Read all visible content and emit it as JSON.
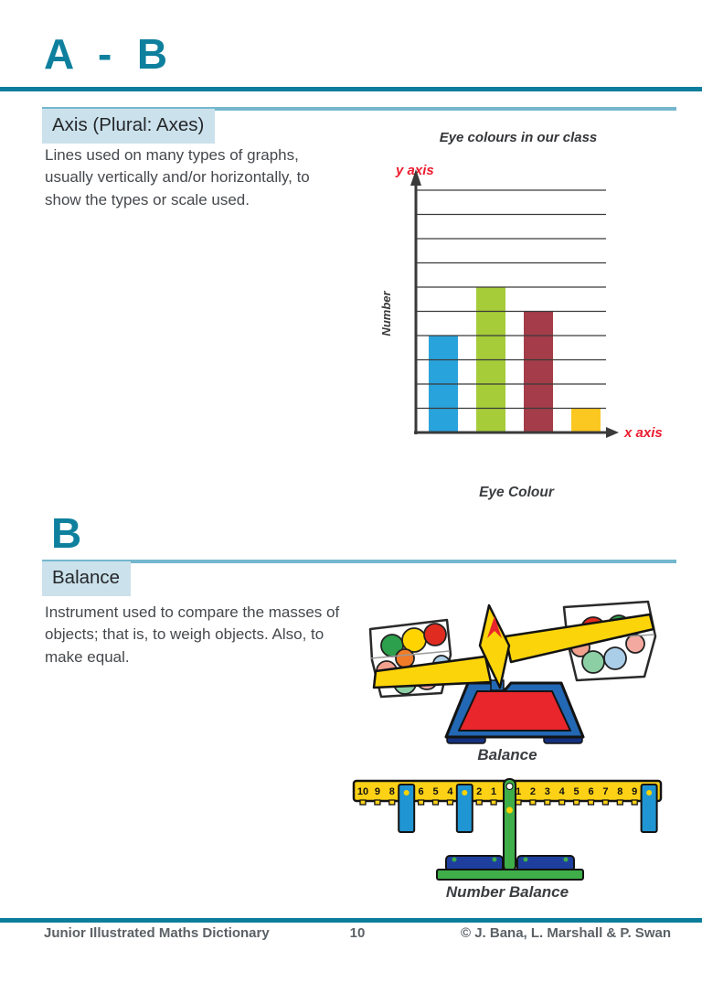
{
  "header": {
    "range": "A - B"
  },
  "section_b": {
    "letter": "B"
  },
  "entries": [
    {
      "term": "Axis (Plural: Axes)",
      "definition": "Lines used on many types of graphs, usually vertically and/or horizontally, to show the types or scale used."
    },
    {
      "term": "Balance",
      "definition": "Instrument used to compare the masses of objects; that is, to weigh objects. Also, to make equal."
    }
  ],
  "chart_data": {
    "type": "bar",
    "title": "Eye colours in our class",
    "xlabel": "Eye Colour",
    "ylabel": "Number",
    "x_axis_label": "x axis",
    "y_axis_label": "y axis",
    "ylim": [
      0,
      10
    ],
    "grid": true,
    "legend": false,
    "note": "bars are unlabeled; colour of each bar indicates the eye colour",
    "bars": [
      {
        "color": "#29a3dc",
        "value": 4
      },
      {
        "color": "#a6cc39",
        "value": 6
      },
      {
        "color": "#a43d49",
        "value": 5
      },
      {
        "color": "#fbc821",
        "value": 1
      }
    ]
  },
  "figures": {
    "balance_caption": "Balance",
    "number_balance_caption": "Number Balance",
    "number_balance": {
      "left_numbers": [
        "10",
        "9",
        "8",
        "7",
        "6",
        "5",
        "4",
        "3",
        "2",
        "1"
      ],
      "right_numbers": [
        "1",
        "2",
        "3",
        "4",
        "5",
        "6",
        "7",
        "8",
        "9",
        "10"
      ],
      "left_tags_at": [
        7,
        3
      ],
      "right_tags_at": [
        10
      ]
    }
  },
  "footer": {
    "book_title": "Junior Illustrated Maths Dictionary",
    "page_number": "10",
    "copyright": "© J. Bana, L. Marshall & P. Swan"
  },
  "colors": {
    "accent_teal": "#0e809e",
    "light_rule": "#74b7ce",
    "term_box_bg": "#cbe1eb",
    "body_text": "#45484c",
    "axis_label_red": "#ec1b2e",
    "footer_text": "#5b6166"
  }
}
